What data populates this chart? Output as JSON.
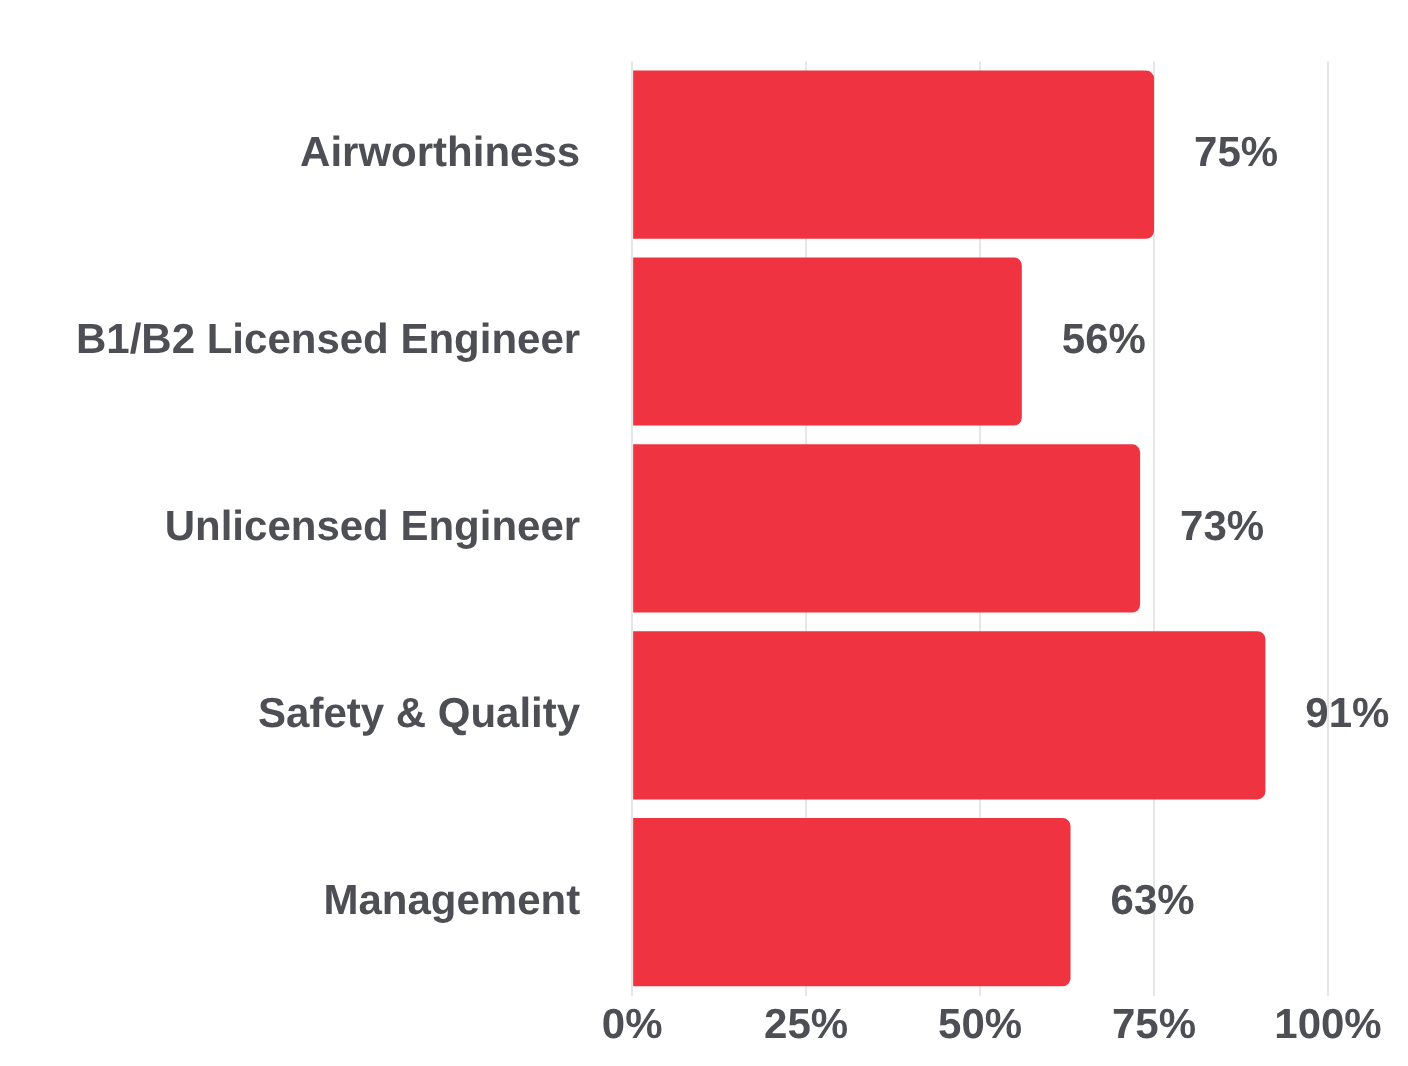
{
  "chart_data": {
    "type": "bar",
    "orientation": "horizontal",
    "categories": [
      "Airworthiness",
      "B1/B2 Licensed Engineer",
      "Unlicensed Engineer",
      "Safety & Quality",
      "Management"
    ],
    "values": [
      75,
      56,
      73,
      91,
      63
    ],
    "color": "#ef3340",
    "value_labels": [
      "75%",
      "56%",
      "73%",
      "91%",
      "63%"
    ],
    "xlim": [
      0,
      100
    ],
    "xticks": [
      {
        "value": 0,
        "label": "0%"
      },
      {
        "value": 25,
        "label": "25%"
      },
      {
        "value": 50,
        "label": "50%"
      },
      {
        "value": 75,
        "label": "75%"
      },
      {
        "value": 100,
        "label": "100%"
      }
    ],
    "grid": "x",
    "legend": false
  }
}
